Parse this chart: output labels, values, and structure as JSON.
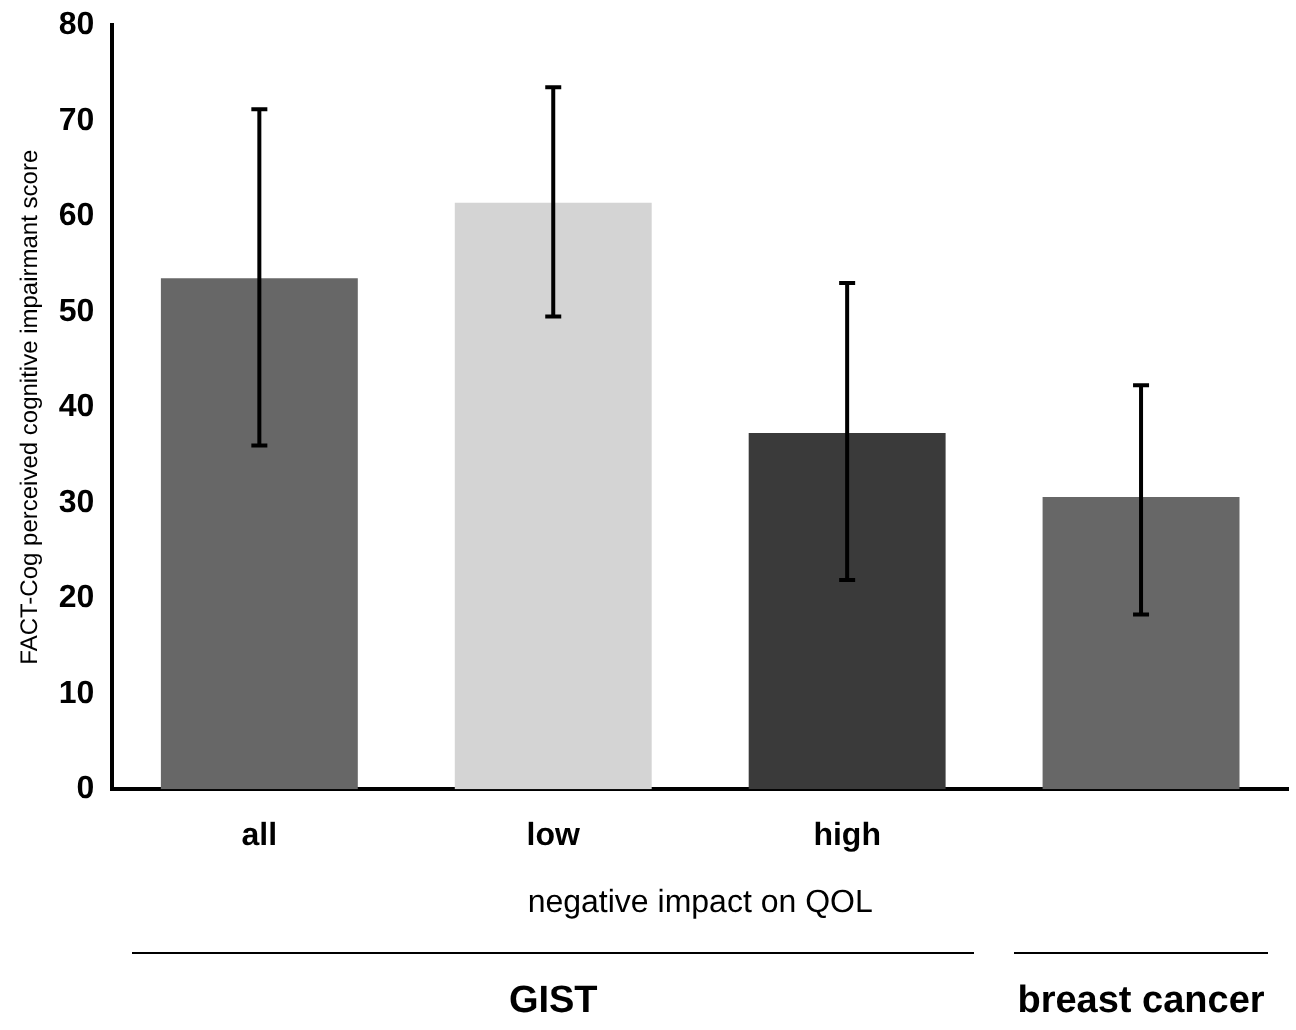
{
  "chart_data": {
    "type": "bar",
    "ylabel": "FACT-Cog perceived cognitive impairmant score",
    "xlabel": "negative impact on QOL",
    "categories": [
      "all",
      "low",
      "high",
      null
    ],
    "values": [
      53.5,
      61.4,
      37.3,
      30.6
    ],
    "colors": [
      "#676767",
      "#d4d4d4",
      "#3a3a3a",
      "#676767"
    ],
    "errors": [
      [
        36.0,
        71.2
      ],
      [
        49.5,
        73.5
      ],
      [
        21.9,
        53.0
      ],
      [
        18.3,
        42.3
      ]
    ],
    "ylim": [
      0,
      80
    ],
    "yticks": [
      0,
      10,
      20,
      30,
      40,
      50,
      60,
      70,
      80
    ],
    "grid": false,
    "legend": false,
    "annotations": [
      "GIST",
      "breast cancer"
    ]
  }
}
